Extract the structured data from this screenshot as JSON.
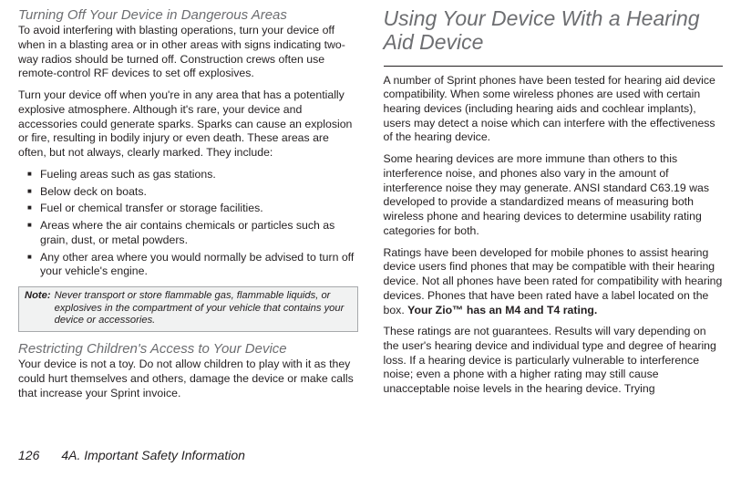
{
  "left": {
    "heading1": "Turning Off Your Device in Dangerous Areas",
    "p1": "To avoid interfering with blasting operations, turn your device off when in a blasting area or in other areas with signs indicating two-way radios should be turned off. Construction crews often use remote-control RF devices to set off explosives.",
    "p2": "Turn your device off when you're in any area that has a potentially explosive atmosphere. Although it's rare, your device and accessories could generate sparks. Sparks can cause an explosion or fire, resulting in bodily injury or even death. These areas are often, but not always, clearly marked. They include:",
    "bullets": [
      "Fueling areas such as gas stations.",
      "Below deck on boats.",
      "Fuel or chemical transfer or storage facilities.",
      "Areas where the air contains chemicals or particles such as grain, dust, or metal powders.",
      "Any other area where you would normally be advised to turn off your vehicle's engine."
    ],
    "note_label": "Note:",
    "note_text": "Never transport or store flammable gas, flammable liquids, or explosives in the compartment of your vehicle that contains your device or accessories.",
    "heading2": "Restricting Children's Access to Your Device",
    "p3": "Your device is not a toy. Do not allow children to play with it as they could hurt themselves and others, damage the device or make calls that increase your Sprint invoice."
  },
  "right": {
    "section_title": "Using Your Device With a Hearing Aid Device",
    "p1": "A number of Sprint phones have been tested for hearing aid device compatibility. When some wireless phones are used with certain hearing devices (including hearing aids and cochlear implants), users may detect a noise which can interfere with the effectiveness of the hearing device.",
    "p2": "Some hearing devices are more immune than others to this interference noise, and phones also vary in the amount of interference noise they may generate. ANSI standard C63.19 was developed to provide a standardized means of measuring both wireless phone and hearing devices to determine usability rating categories for both.",
    "p3a": "Ratings have been developed for mobile phones to assist hearing device users find phones that may be compatible with their hearing device. Not all phones have been rated for compatibility with hearing devices. Phones that have been rated have a label located on the box. ",
    "p3b_bold": "Your Zio™ has an M4 and T4 rating.",
    "p4": "These ratings are not guarantees. Results will vary depending on the user's hearing device and individual type and degree of hearing loss. If a hearing device is particularly vulnerable to interference noise; even a phone with a higher rating may still cause unacceptable noise levels in the hearing device. Trying"
  },
  "footer": {
    "page_number": "126",
    "chapter": "4A. Important Safety Information"
  }
}
